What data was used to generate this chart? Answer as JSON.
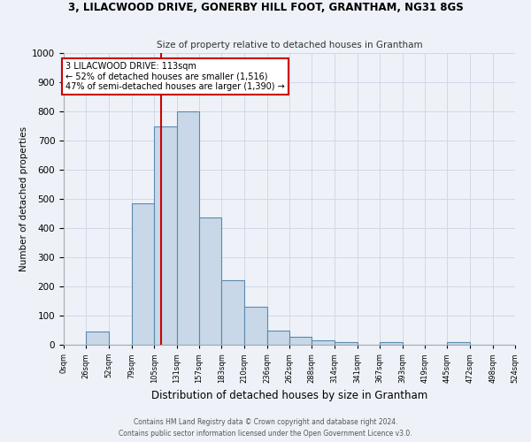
{
  "title1": "3, LILACWOOD DRIVE, GONERBY HILL FOOT, GRANTHAM, NG31 8GS",
  "title2": "Size of property relative to detached houses in Grantham",
  "xlabel": "Distribution of detached houses by size in Grantham",
  "ylabel": "Number of detached properties",
  "bin_edges": [
    0,
    26,
    52,
    79,
    105,
    131,
    157,
    183,
    210,
    236,
    262,
    288,
    314,
    341,
    367,
    393,
    419,
    445,
    472,
    498,
    524
  ],
  "bar_heights": [
    0,
    45,
    0,
    485,
    750,
    800,
    435,
    220,
    130,
    50,
    28,
    15,
    10,
    0,
    8,
    0,
    0,
    8,
    0,
    0
  ],
  "bar_color": "#c8d8e8",
  "bar_edge_color": "#5a8ab0",
  "vline_x": 113,
  "vline_color": "#cc0000",
  "annotation_line1": "3 LILACWOOD DRIVE: 113sqm",
  "annotation_line2": "← 52% of detached houses are smaller (1,516)",
  "annotation_line3": "47% of semi-detached houses are larger (1,390) →",
  "annotation_box_color": "#ffffff",
  "annotation_box_edge": "#cc0000",
  "ylim": [
    0,
    1000
  ],
  "yticks": [
    0,
    100,
    200,
    300,
    400,
    500,
    600,
    700,
    800,
    900,
    1000
  ],
  "tick_labels": [
    "0sqm",
    "26sqm",
    "52sqm",
    "79sqm",
    "105sqm",
    "131sqm",
    "157sqm",
    "183sqm",
    "210sqm",
    "236sqm",
    "262sqm",
    "288sqm",
    "314sqm",
    "341sqm",
    "367sqm",
    "393sqm",
    "419sqm",
    "445sqm",
    "472sqm",
    "498sqm",
    "524sqm"
  ],
  "footer1": "Contains HM Land Registry data © Crown copyright and database right 2024.",
  "footer2": "Contains public sector information licensed under the Open Government Licence v3.0.",
  "grid_color": "#d0d8e8",
  "bg_color": "#eef2f8",
  "title1_fontsize": 8.5,
  "title2_fontsize": 7.5,
  "xlabel_fontsize": 8.5,
  "ylabel_fontsize": 7.5
}
